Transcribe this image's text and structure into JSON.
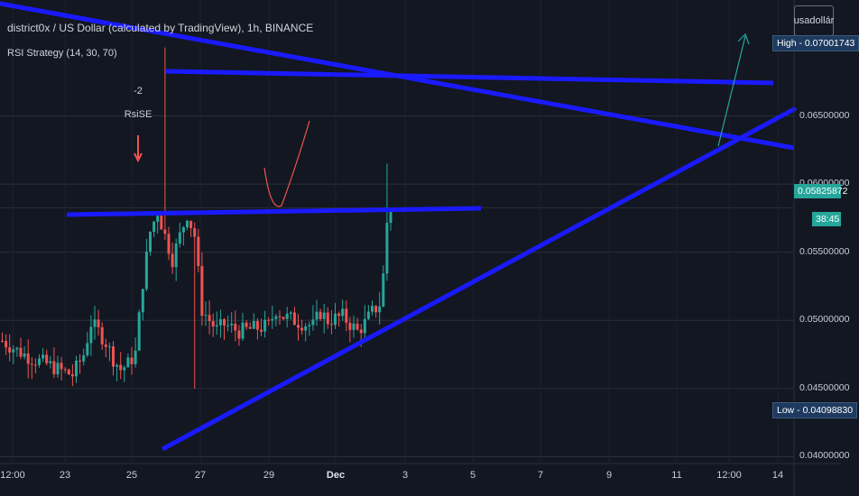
{
  "header": {
    "title": "district0x / US Dollar (calculated by TradingView), 1h, BINANCE",
    "indicator": "RSI Strategy (14, 30, 70)",
    "currency": "usadollár"
  },
  "markers": {
    "high_label": "High - 0.07001743",
    "low_label": "Low - 0.04098830",
    "last_price": "0.05825872",
    "countdown": "38:45",
    "signal_value": "-2",
    "signal_name": "RsiSE"
  },
  "colors": {
    "background": "#131722",
    "up": "#26a69a",
    "down": "#ef5350",
    "trendline": "#1a1aff",
    "arrow": "#26a69a",
    "curve": "#ef5350"
  },
  "chart_data": {
    "type": "candlestick",
    "title": "district0x / US Dollar (calculated by TradingView), 1h, BINANCE",
    "ylim": [
      0.0395,
      0.0735
    ],
    "y_ticks": [
      "0.06500000",
      "0.06000000",
      "0.05500000",
      "0.05000000",
      "0.04500000",
      "0.04000000"
    ],
    "y_tick_values": [
      0.065,
      0.06,
      0.055,
      0.05,
      0.045,
      0.04
    ],
    "x_ticks": [
      "12:00",
      "23",
      "25",
      "27",
      "29",
      "Dec",
      "3",
      "5",
      "7",
      "9",
      "11",
      "12:00",
      "14"
    ],
    "grid": true,
    "high": 0.07001743,
    "low": 0.0409883,
    "last_price": 0.05825872,
    "price_path": [
      [
        0,
        0.0485
      ],
      [
        4,
        0.0478
      ],
      [
        8,
        0.0472
      ],
      [
        12,
        0.0468
      ],
      [
        16,
        0.0463
      ],
      [
        19,
        0.046
      ],
      [
        22,
        0.0475
      ],
      [
        24,
        0.0498
      ],
      [
        26,
        0.0492
      ],
      [
        28,
        0.0484
      ],
      [
        30,
        0.0472
      ],
      [
        32,
        0.0464
      ],
      [
        34,
        0.0468
      ],
      [
        36,
        0.0476
      ],
      [
        38,
        0.0528
      ],
      [
        40,
        0.0565
      ],
      [
        42,
        0.058
      ],
      [
        44,
        0.0562
      ],
      [
        46,
        0.0545
      ],
      [
        48,
        0.0562
      ],
      [
        50,
        0.0578
      ],
      [
        52,
        0.0562
      ],
      [
        54,
        0.0508
      ],
      [
        56,
        0.05
      ],
      [
        58,
        0.0493
      ],
      [
        60,
        0.0497
      ],
      [
        64,
        0.0492
      ],
      [
        68,
        0.0494
      ],
      [
        72,
        0.0496
      ],
      [
        74,
        0.0508
      ],
      [
        76,
        0.0503
      ],
      [
        80,
        0.0499
      ],
      [
        84,
        0.0496
      ],
      [
        86,
        0.0506
      ],
      [
        88,
        0.05
      ],
      [
        92,
        0.0503
      ],
      [
        96,
        0.0492
      ],
      [
        98,
        0.0498
      ],
      [
        100,
        0.0506
      ],
      [
        102,
        0.0512
      ],
      [
        103,
        0.0533
      ],
      [
        104,
        0.0572
      ],
      [
        105,
        0.0582
      ]
    ]
  }
}
